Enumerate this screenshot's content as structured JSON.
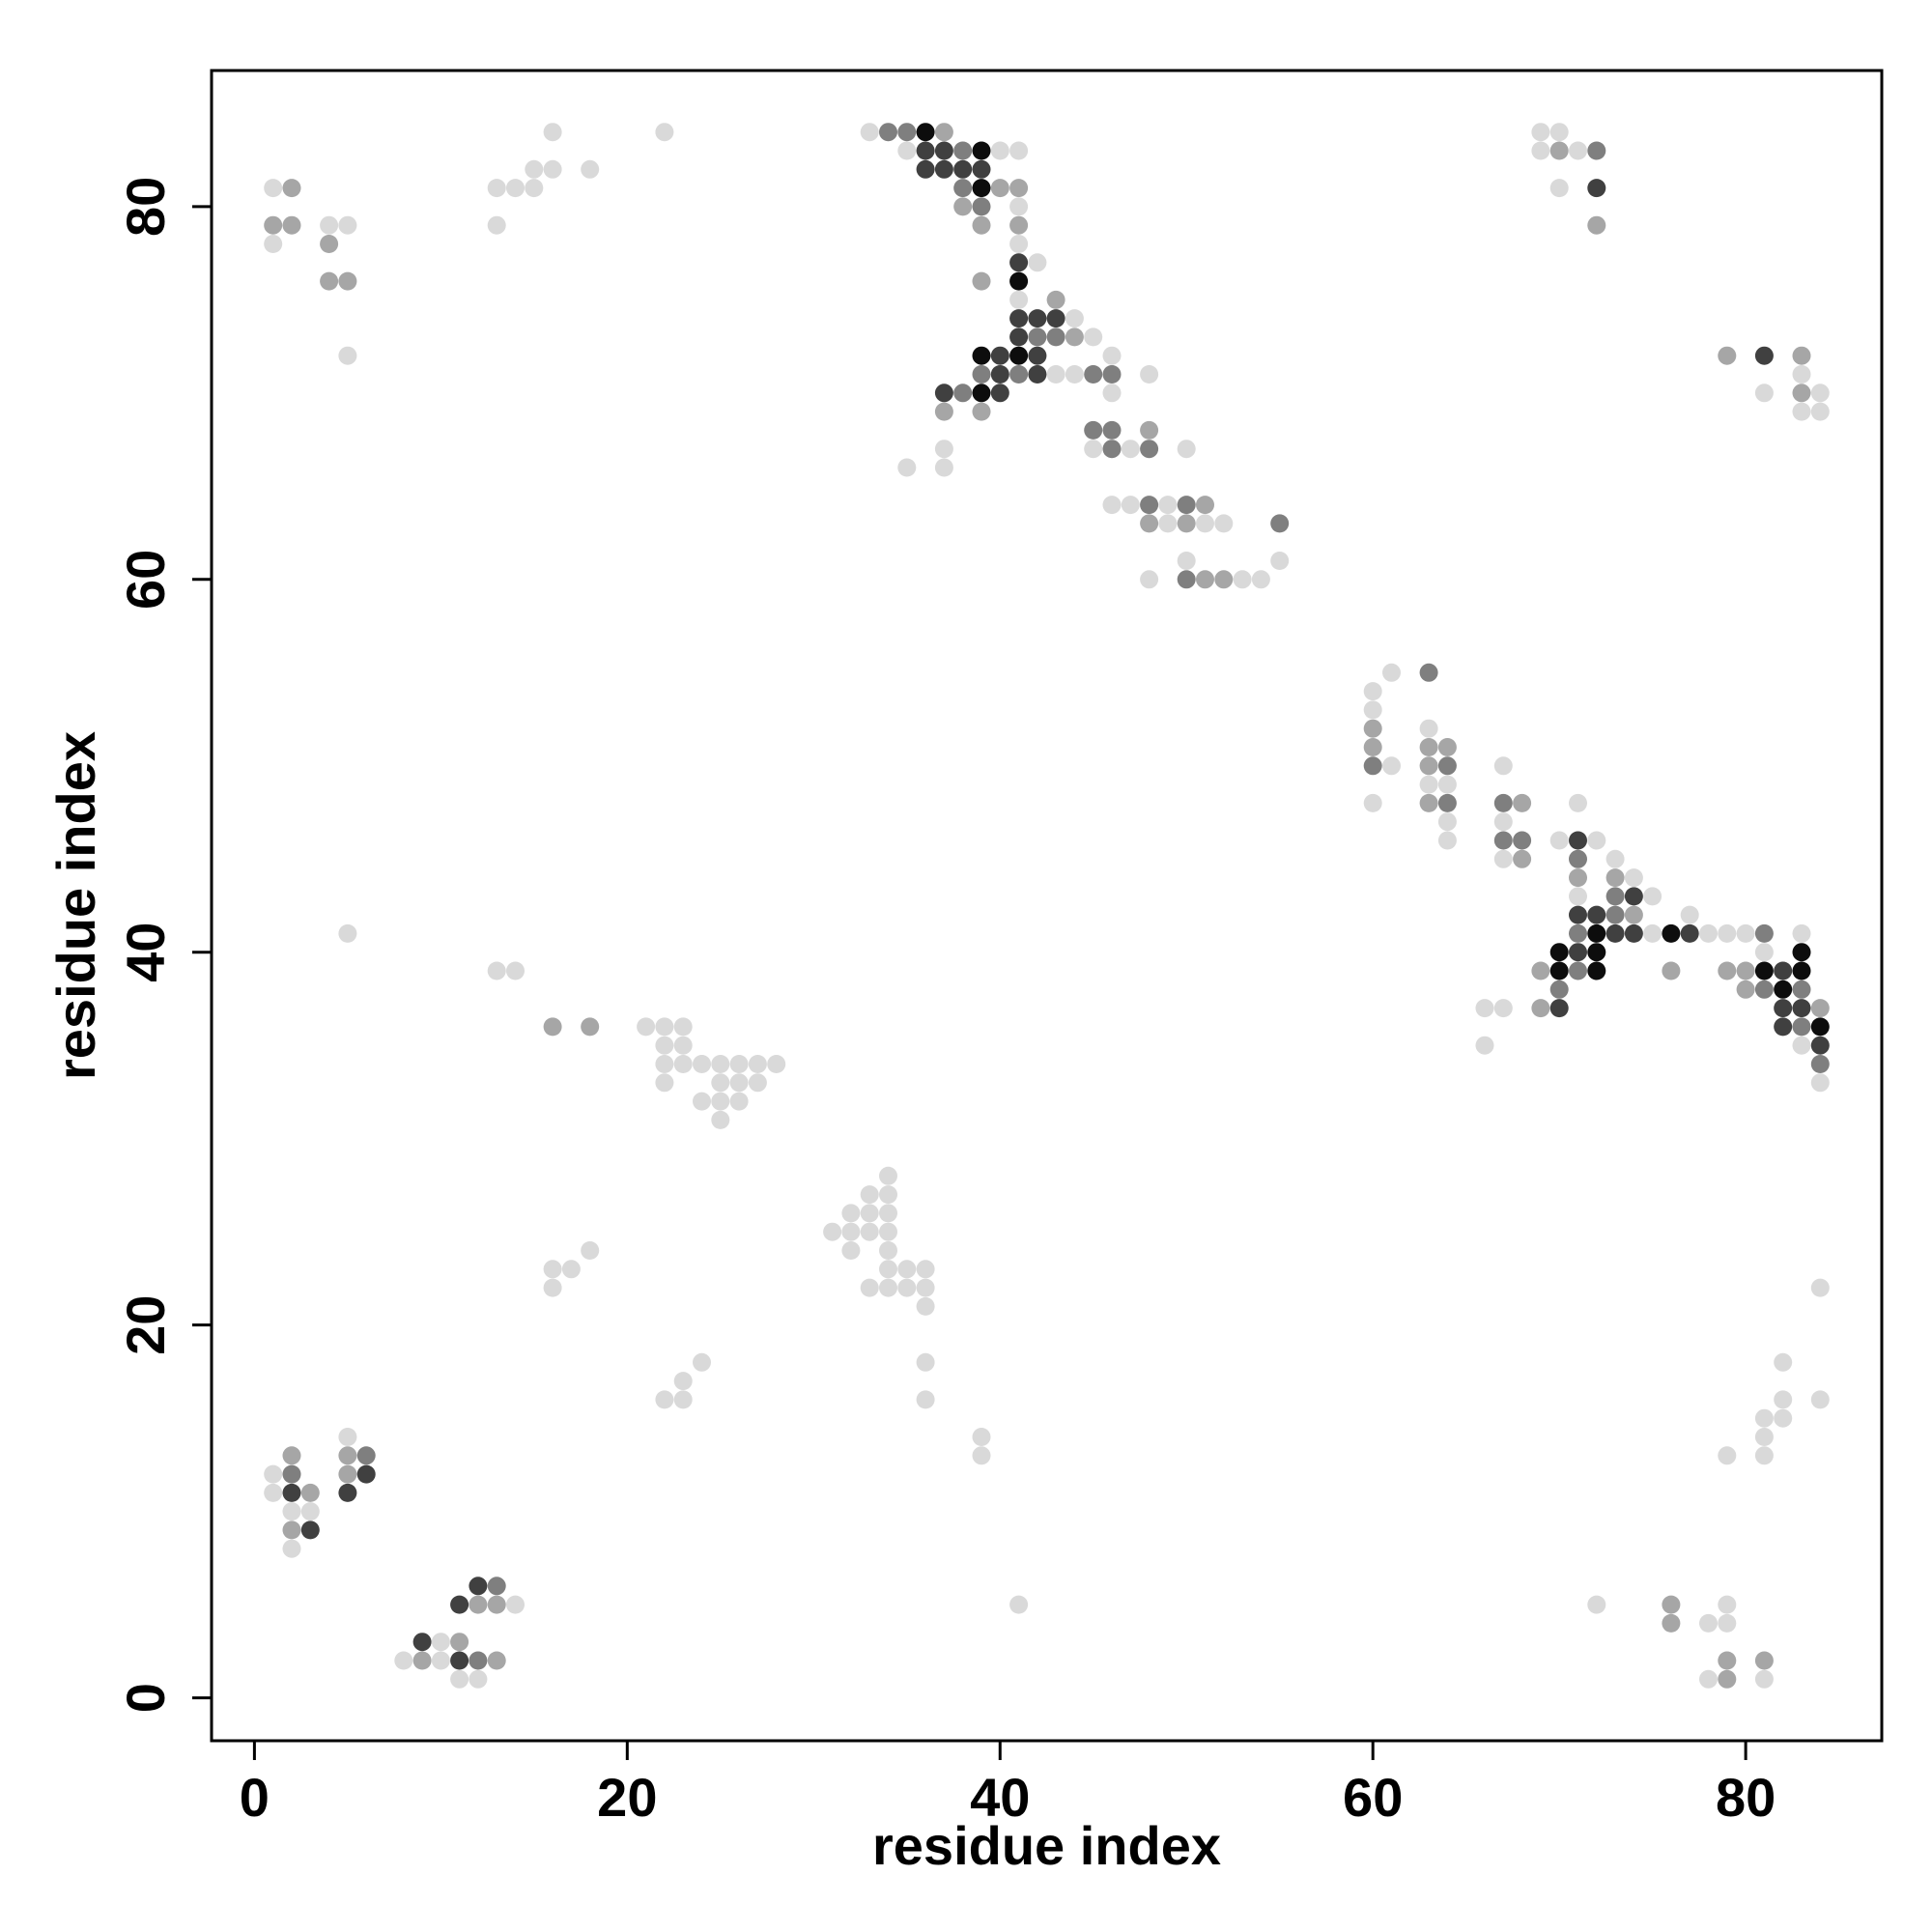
{
  "chart_data": {
    "type": "scatter",
    "title": "",
    "xlabel": "residue index",
    "ylabel": "residue index",
    "xlim": [
      -2.3,
      87.3
    ],
    "ylim": [
      -2.3,
      87.3
    ],
    "x_ticks": [
      0,
      20,
      40,
      60,
      80
    ],
    "y_ticks": [
      0,
      20,
      40,
      60,
      80
    ],
    "grid": false,
    "legend": "none",
    "colors": {
      "light": "#d9d9d9",
      "mid": "#a6a6a6",
      "midDark": "#7f7f7f",
      "dark": "#404040",
      "darkest": "#0d0d0d"
    },
    "points": [
      [
        1,
        81,
        "light"
      ],
      [
        2,
        81,
        "mid"
      ],
      [
        1,
        79,
        "mid"
      ],
      [
        2,
        79,
        "mid"
      ],
      [
        1,
        78,
        "light"
      ],
      [
        4,
        79,
        "light"
      ],
      [
        5,
        79,
        "light"
      ],
      [
        4,
        78,
        "mid"
      ],
      [
        4,
        76,
        "mid"
      ],
      [
        5,
        76,
        "mid"
      ],
      [
        5,
        72,
        "light"
      ],
      [
        13,
        81,
        "light"
      ],
      [
        14,
        81,
        "light"
      ],
      [
        15,
        81,
        "light"
      ],
      [
        15,
        82,
        "light"
      ],
      [
        16,
        82,
        "light"
      ],
      [
        16,
        84,
        "light"
      ],
      [
        18,
        82,
        "light"
      ],
      [
        13,
        79,
        "light"
      ],
      [
        22,
        84,
        "light"
      ],
      [
        33,
        84,
        "light"
      ],
      [
        34,
        84,
        "midDark"
      ],
      [
        35,
        84,
        "midDark"
      ],
      [
        36,
        84,
        "darkest"
      ],
      [
        37,
        84,
        "mid"
      ],
      [
        35,
        83,
        "light"
      ],
      [
        36,
        83,
        "dark"
      ],
      [
        37,
        83,
        "dark"
      ],
      [
        38,
        83,
        "midDark"
      ],
      [
        39,
        83,
        "darkest"
      ],
      [
        40,
        83,
        "light"
      ],
      [
        41,
        83,
        "light"
      ],
      [
        36,
        82,
        "dark"
      ],
      [
        37,
        82,
        "dark"
      ],
      [
        38,
        82,
        "dark"
      ],
      [
        39,
        82,
        "dark"
      ],
      [
        38,
        81,
        "midDark"
      ],
      [
        39,
        81,
        "darkest"
      ],
      [
        40,
        81,
        "mid"
      ],
      [
        41,
        81,
        "mid"
      ],
      [
        38,
        80,
        "mid"
      ],
      [
        39,
        80,
        "midDark"
      ],
      [
        41,
        80,
        "light"
      ],
      [
        39,
        79,
        "mid"
      ],
      [
        41,
        79,
        "mid"
      ],
      [
        41,
        78,
        "light"
      ],
      [
        41,
        77,
        "dark"
      ],
      [
        42,
        77,
        "light"
      ],
      [
        39,
        76,
        "mid"
      ],
      [
        41,
        76,
        "darkest"
      ],
      [
        41,
        75,
        "light"
      ],
      [
        43,
        75,
        "mid"
      ],
      [
        41,
        74,
        "dark"
      ],
      [
        42,
        74,
        "dark"
      ],
      [
        43,
        74,
        "dark"
      ],
      [
        44,
        74,
        "light"
      ],
      [
        41,
        73,
        "dark"
      ],
      [
        42,
        73,
        "midDark"
      ],
      [
        43,
        73,
        "midDark"
      ],
      [
        44,
        73,
        "mid"
      ],
      [
        45,
        73,
        "light"
      ],
      [
        39,
        72,
        "darkest"
      ],
      [
        40,
        72,
        "dark"
      ],
      [
        41,
        72,
        "darkest"
      ],
      [
        42,
        72,
        "dark"
      ],
      [
        46,
        72,
        "light"
      ],
      [
        39,
        71,
        "midDark"
      ],
      [
        40,
        71,
        "dark"
      ],
      [
        41,
        71,
        "midDark"
      ],
      [
        42,
        71,
        "dark"
      ],
      [
        43,
        71,
        "light"
      ],
      [
        44,
        71,
        "light"
      ],
      [
        45,
        71,
        "midDark"
      ],
      [
        46,
        71,
        "midDark"
      ],
      [
        48,
        71,
        "light"
      ],
      [
        37,
        70,
        "dark"
      ],
      [
        38,
        70,
        "midDark"
      ],
      [
        39,
        70,
        "darkest"
      ],
      [
        40,
        70,
        "dark"
      ],
      [
        46,
        70,
        "light"
      ],
      [
        37,
        69,
        "mid"
      ],
      [
        39,
        69,
        "mid"
      ],
      [
        45,
        68,
        "midDark"
      ],
      [
        46,
        68,
        "midDark"
      ],
      [
        48,
        68,
        "mid"
      ],
      [
        45,
        67,
        "light"
      ],
      [
        46,
        67,
        "midDark"
      ],
      [
        47,
        67,
        "light"
      ],
      [
        48,
        67,
        "midDark"
      ],
      [
        50,
        67,
        "light"
      ],
      [
        37,
        67,
        "light"
      ],
      [
        35,
        66,
        "light"
      ],
      [
        37,
        66,
        "light"
      ],
      [
        46,
        64,
        "light"
      ],
      [
        47,
        64,
        "light"
      ],
      [
        48,
        64,
        "midDark"
      ],
      [
        49,
        64,
        "light"
      ],
      [
        50,
        64,
        "midDark"
      ],
      [
        51,
        64,
        "mid"
      ],
      [
        48,
        63,
        "mid"
      ],
      [
        49,
        63,
        "light"
      ],
      [
        50,
        63,
        "mid"
      ],
      [
        51,
        63,
        "light"
      ],
      [
        52,
        63,
        "light"
      ],
      [
        55,
        63,
        "midDark"
      ],
      [
        50,
        61,
        "light"
      ],
      [
        55,
        61,
        "light"
      ],
      [
        48,
        60,
        "light"
      ],
      [
        50,
        60,
        "midDark"
      ],
      [
        51,
        60,
        "mid"
      ],
      [
        52,
        60,
        "mid"
      ],
      [
        53,
        60,
        "light"
      ],
      [
        54,
        60,
        "light"
      ],
      [
        60,
        54,
        "light"
      ],
      [
        61,
        55,
        "light"
      ],
      [
        63,
        55,
        "midDark"
      ],
      [
        60,
        53,
        "light"
      ],
      [
        60,
        52,
        "mid"
      ],
      [
        63,
        52,
        "light"
      ],
      [
        60,
        51,
        "mid"
      ],
      [
        63,
        51,
        "mid"
      ],
      [
        64,
        51,
        "mid"
      ],
      [
        60,
        50,
        "midDark"
      ],
      [
        61,
        50,
        "light"
      ],
      [
        63,
        50,
        "mid"
      ],
      [
        64,
        50,
        "midDark"
      ],
      [
        67,
        50,
        "light"
      ],
      [
        63,
        49,
        "light"
      ],
      [
        64,
        49,
        "light"
      ],
      [
        60,
        48,
        "light"
      ],
      [
        63,
        48,
        "mid"
      ],
      [
        64,
        48,
        "midDark"
      ],
      [
        67,
        48,
        "midDark"
      ],
      [
        68,
        48,
        "mid"
      ],
      [
        71,
        48,
        "light"
      ],
      [
        64,
        47,
        "light"
      ],
      [
        67,
        47,
        "light"
      ],
      [
        64,
        46,
        "light"
      ],
      [
        67,
        46,
        "midDark"
      ],
      [
        68,
        46,
        "midDark"
      ],
      [
        70,
        46,
        "light"
      ],
      [
        71,
        46,
        "dark"
      ],
      [
        72,
        46,
        "light"
      ],
      [
        67,
        45,
        "light"
      ],
      [
        68,
        45,
        "mid"
      ],
      [
        71,
        45,
        "midDark"
      ],
      [
        73,
        45,
        "light"
      ],
      [
        71,
        44,
        "mid"
      ],
      [
        73,
        44,
        "mid"
      ],
      [
        74,
        44,
        "light"
      ],
      [
        71,
        43,
        "light"
      ],
      [
        73,
        43,
        "midDark"
      ],
      [
        74,
        43,
        "dark"
      ],
      [
        75,
        43,
        "light"
      ],
      [
        71,
        42,
        "dark"
      ],
      [
        72,
        42,
        "dark"
      ],
      [
        73,
        42,
        "midDark"
      ],
      [
        74,
        42,
        "mid"
      ],
      [
        77,
        42,
        "light"
      ],
      [
        71,
        41,
        "midDark"
      ],
      [
        72,
        41,
        "darkest"
      ],
      [
        73,
        41,
        "dark"
      ],
      [
        74,
        41,
        "dark"
      ],
      [
        75,
        41,
        "light"
      ],
      [
        76,
        41,
        "darkest"
      ],
      [
        77,
        41,
        "dark"
      ],
      [
        78,
        41,
        "light"
      ],
      [
        79,
        41,
        "light"
      ],
      [
        80,
        41,
        "light"
      ],
      [
        81,
        41,
        "midDark"
      ],
      [
        83,
        41,
        "light"
      ],
      [
        70,
        40,
        "darkest"
      ],
      [
        71,
        40,
        "dark"
      ],
      [
        72,
        40,
        "darkest"
      ],
      [
        81,
        40,
        "light"
      ],
      [
        83,
        40,
        "darkest"
      ],
      [
        69,
        39,
        "mid"
      ],
      [
        70,
        39,
        "darkest"
      ],
      [
        71,
        39,
        "midDark"
      ],
      [
        72,
        39,
        "darkest"
      ],
      [
        76,
        39,
        "mid"
      ],
      [
        79,
        39,
        "mid"
      ],
      [
        80,
        39,
        "mid"
      ],
      [
        81,
        39,
        "darkest"
      ],
      [
        82,
        39,
        "dark"
      ],
      [
        83,
        39,
        "darkest"
      ],
      [
        70,
        38,
        "midDark"
      ],
      [
        80,
        38,
        "mid"
      ],
      [
        81,
        38,
        "midDark"
      ],
      [
        82,
        38,
        "darkest"
      ],
      [
        83,
        38,
        "midDark"
      ],
      [
        66,
        37,
        "light"
      ],
      [
        67,
        37,
        "light"
      ],
      [
        69,
        37,
        "mid"
      ],
      [
        70,
        37,
        "dark"
      ],
      [
        82,
        37,
        "dark"
      ],
      [
        83,
        37,
        "dark"
      ],
      [
        84,
        37,
        "mid"
      ],
      [
        82,
        36,
        "dark"
      ],
      [
        83,
        36,
        "midDark"
      ],
      [
        84,
        36,
        "darkest"
      ],
      [
        66,
        35,
        "light"
      ],
      [
        83,
        35,
        "light"
      ],
      [
        84,
        35,
        "dark"
      ],
      [
        84,
        34,
        "midDark"
      ],
      [
        84,
        33,
        "light"
      ],
      [
        72,
        83,
        "midDark"
      ],
      [
        72,
        81,
        "dark"
      ],
      [
        72,
        79,
        "mid"
      ],
      [
        69,
        84,
        "light"
      ],
      [
        70,
        84,
        "light"
      ],
      [
        69,
        83,
        "light"
      ],
      [
        70,
        83,
        "mid"
      ],
      [
        71,
        83,
        "light"
      ],
      [
        70,
        81,
        "light"
      ],
      [
        79,
        72,
        "mid"
      ],
      [
        81,
        72,
        "dark"
      ],
      [
        83,
        72,
        "mid"
      ],
      [
        83,
        71,
        "light"
      ],
      [
        81,
        70,
        "light"
      ],
      [
        83,
        70,
        "mid"
      ],
      [
        84,
        70,
        "light"
      ],
      [
        83,
        69,
        "light"
      ],
      [
        84,
        69,
        "light"
      ],
      [
        5,
        41,
        "light"
      ],
      [
        13,
        39,
        "light"
      ],
      [
        14,
        39,
        "light"
      ],
      [
        16,
        36,
        "mid"
      ],
      [
        18,
        36,
        "mid"
      ],
      [
        21,
        36,
        "light"
      ],
      [
        22,
        36,
        "light"
      ],
      [
        23,
        36,
        "light"
      ],
      [
        22,
        35,
        "light"
      ],
      [
        23,
        35,
        "light"
      ],
      [
        22,
        34,
        "light"
      ],
      [
        23,
        34,
        "light"
      ],
      [
        24,
        34,
        "light"
      ],
      [
        25,
        34,
        "light"
      ],
      [
        26,
        34,
        "light"
      ],
      [
        27,
        34,
        "light"
      ],
      [
        28,
        34,
        "light"
      ],
      [
        22,
        33,
        "light"
      ],
      [
        25,
        33,
        "light"
      ],
      [
        26,
        33,
        "light"
      ],
      [
        27,
        33,
        "light"
      ],
      [
        24,
        32,
        "light"
      ],
      [
        25,
        32,
        "light"
      ],
      [
        26,
        32,
        "light"
      ],
      [
        25,
        31,
        "light"
      ],
      [
        34,
        28,
        "light"
      ],
      [
        33,
        27,
        "light"
      ],
      [
        34,
        27,
        "light"
      ],
      [
        32,
        26,
        "light"
      ],
      [
        33,
        26,
        "light"
      ],
      [
        34,
        26,
        "light"
      ],
      [
        31,
        25,
        "light"
      ],
      [
        32,
        25,
        "light"
      ],
      [
        33,
        25,
        "light"
      ],
      [
        34,
        25,
        "light"
      ],
      [
        32,
        24,
        "light"
      ],
      [
        34,
        24,
        "light"
      ],
      [
        34,
        23,
        "light"
      ],
      [
        35,
        23,
        "light"
      ],
      [
        36,
        23,
        "light"
      ],
      [
        33,
        22,
        "light"
      ],
      [
        34,
        22,
        "light"
      ],
      [
        35,
        22,
        "light"
      ],
      [
        36,
        22,
        "light"
      ],
      [
        36,
        21,
        "light"
      ],
      [
        16,
        23,
        "light"
      ],
      [
        17,
        23,
        "light"
      ],
      [
        16,
        22,
        "light"
      ],
      [
        18,
        24,
        "light"
      ],
      [
        22,
        16,
        "light"
      ],
      [
        23,
        16,
        "light"
      ],
      [
        23,
        17,
        "light"
      ],
      [
        24,
        18,
        "light"
      ],
      [
        36,
        18,
        "light"
      ],
      [
        36,
        16,
        "light"
      ],
      [
        39,
        14,
        "light"
      ],
      [
        39,
        13,
        "light"
      ],
      [
        84,
        22,
        "light"
      ],
      [
        84,
        16,
        "light"
      ],
      [
        82,
        18,
        "light"
      ],
      [
        82,
        16,
        "light"
      ],
      [
        81,
        15,
        "light"
      ],
      [
        82,
        15,
        "light"
      ],
      [
        81,
        14,
        "light"
      ],
      [
        79,
        13,
        "light"
      ],
      [
        81,
        13,
        "light"
      ],
      [
        1,
        12,
        "light"
      ],
      [
        2,
        13,
        "mid"
      ],
      [
        2,
        12,
        "midDark"
      ],
      [
        1,
        11,
        "light"
      ],
      [
        2,
        11,
        "dark"
      ],
      [
        3,
        11,
        "mid"
      ],
      [
        2,
        10,
        "light"
      ],
      [
        3,
        10,
        "light"
      ],
      [
        2,
        9,
        "mid"
      ],
      [
        3,
        9,
        "dark"
      ],
      [
        2,
        8,
        "light"
      ],
      [
        5,
        14,
        "light"
      ],
      [
        5,
        13,
        "mid"
      ],
      [
        6,
        13,
        "midDark"
      ],
      [
        5,
        12,
        "mid"
      ],
      [
        6,
        12,
        "dark"
      ],
      [
        5,
        11,
        "dark"
      ],
      [
        12,
        6,
        "dark"
      ],
      [
        13,
        6,
        "midDark"
      ],
      [
        11,
        5,
        "dark"
      ],
      [
        12,
        5,
        "mid"
      ],
      [
        13,
        5,
        "mid"
      ],
      [
        14,
        5,
        "light"
      ],
      [
        9,
        3,
        "dark"
      ],
      [
        10,
        3,
        "light"
      ],
      [
        11,
        3,
        "mid"
      ],
      [
        8,
        2,
        "light"
      ],
      [
        9,
        2,
        "mid"
      ],
      [
        10,
        2,
        "light"
      ],
      [
        11,
        2,
        "dark"
      ],
      [
        12,
        2,
        "midDark"
      ],
      [
        13,
        2,
        "mid"
      ],
      [
        11,
        1,
        "light"
      ],
      [
        12,
        1,
        "light"
      ],
      [
        41,
        5,
        "light"
      ],
      [
        72,
        5,
        "light"
      ],
      [
        76,
        5,
        "mid"
      ],
      [
        76,
        4,
        "mid"
      ],
      [
        79,
        5,
        "light"
      ],
      [
        78,
        4,
        "light"
      ],
      [
        79,
        4,
        "light"
      ],
      [
        79,
        2,
        "mid"
      ],
      [
        81,
        2,
        "mid"
      ],
      [
        78,
        1,
        "light"
      ],
      [
        79,
        1,
        "mid"
      ],
      [
        81,
        1,
        "light"
      ]
    ]
  }
}
